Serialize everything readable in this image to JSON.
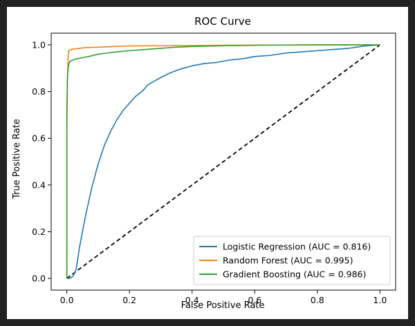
{
  "chart_data": {
    "type": "line",
    "title": "ROC Curve",
    "xlabel": "False Positive Rate",
    "ylabel": "True Positive Rate",
    "xlim": [
      -0.05,
      1.05
    ],
    "ylim": [
      -0.05,
      1.05
    ],
    "xticks": [
      0.0,
      0.2,
      0.4,
      0.6,
      0.8,
      1.0
    ],
    "yticks": [
      0.0,
      0.2,
      0.4,
      0.6,
      0.8,
      1.0
    ],
    "xtick_labels": [
      "0.0",
      "0.2",
      "0.4",
      "0.6",
      "0.8",
      "1.0"
    ],
    "ytick_labels": [
      "0.0",
      "0.2",
      "0.4",
      "0.6",
      "0.8",
      "1.0"
    ],
    "grid": false,
    "legend_position": "lower-right",
    "series": [
      {
        "name": "Logistic Regression (AUC = 0.816)",
        "color": "#1f77b4",
        "x": [
          0.0,
          0.01,
          0.02,
          0.03,
          0.04,
          0.05,
          0.06,
          0.07,
          0.08,
          0.09,
          0.1,
          0.12,
          0.14,
          0.16,
          0.18,
          0.2,
          0.22,
          0.24,
          0.26,
          0.28,
          0.3,
          0.33,
          0.36,
          0.4,
          0.44,
          0.48,
          0.52,
          0.56,
          0.6,
          0.65,
          0.7,
          0.75,
          0.8,
          0.85,
          0.9,
          0.95,
          1.0
        ],
        "y": [
          0.0,
          0.0,
          0.01,
          0.04,
          0.13,
          0.2,
          0.27,
          0.33,
          0.39,
          0.44,
          0.49,
          0.57,
          0.63,
          0.68,
          0.72,
          0.75,
          0.78,
          0.8,
          0.83,
          0.845,
          0.86,
          0.88,
          0.895,
          0.91,
          0.92,
          0.925,
          0.935,
          0.94,
          0.95,
          0.955,
          0.965,
          0.97,
          0.975,
          0.98,
          0.985,
          0.995,
          1.0
        ]
      },
      {
        "name": "Random Forest (AUC = 0.995)",
        "color": "#ff7f0e",
        "x": [
          0.0,
          0.0,
          0.002,
          0.004,
          0.006,
          0.01,
          0.02,
          0.04,
          0.06,
          0.1,
          0.15,
          0.2,
          0.3,
          0.4,
          0.5,
          0.6,
          0.7,
          0.8,
          0.9,
          1.0
        ],
        "y": [
          0.0,
          0.6,
          0.85,
          0.95,
          0.975,
          0.978,
          0.982,
          0.985,
          0.988,
          0.99,
          0.993,
          0.995,
          0.996,
          0.997,
          0.998,
          0.999,
          0.999,
          1.0,
          1.0,
          1.0
        ]
      },
      {
        "name": "Gradient Boosting (AUC = 0.986)",
        "color": "#2ca02c",
        "x": [
          0.0,
          0.0,
          0.002,
          0.005,
          0.01,
          0.02,
          0.03,
          0.05,
          0.07,
          0.1,
          0.13,
          0.16,
          0.2,
          0.25,
          0.3,
          0.35,
          0.4,
          0.5,
          0.6,
          0.7,
          0.8,
          0.9,
          1.0
        ],
        "y": [
          0.0,
          0.72,
          0.86,
          0.91,
          0.93,
          0.935,
          0.94,
          0.945,
          0.95,
          0.96,
          0.965,
          0.97,
          0.975,
          0.98,
          0.985,
          0.99,
          0.993,
          0.996,
          0.998,
          0.999,
          1.0,
          1.0,
          1.0
        ]
      }
    ],
    "reference_line": {
      "style": "dashed",
      "color": "#000000",
      "x": [
        0.0,
        1.0
      ],
      "y": [
        0.0,
        1.0
      ]
    }
  }
}
